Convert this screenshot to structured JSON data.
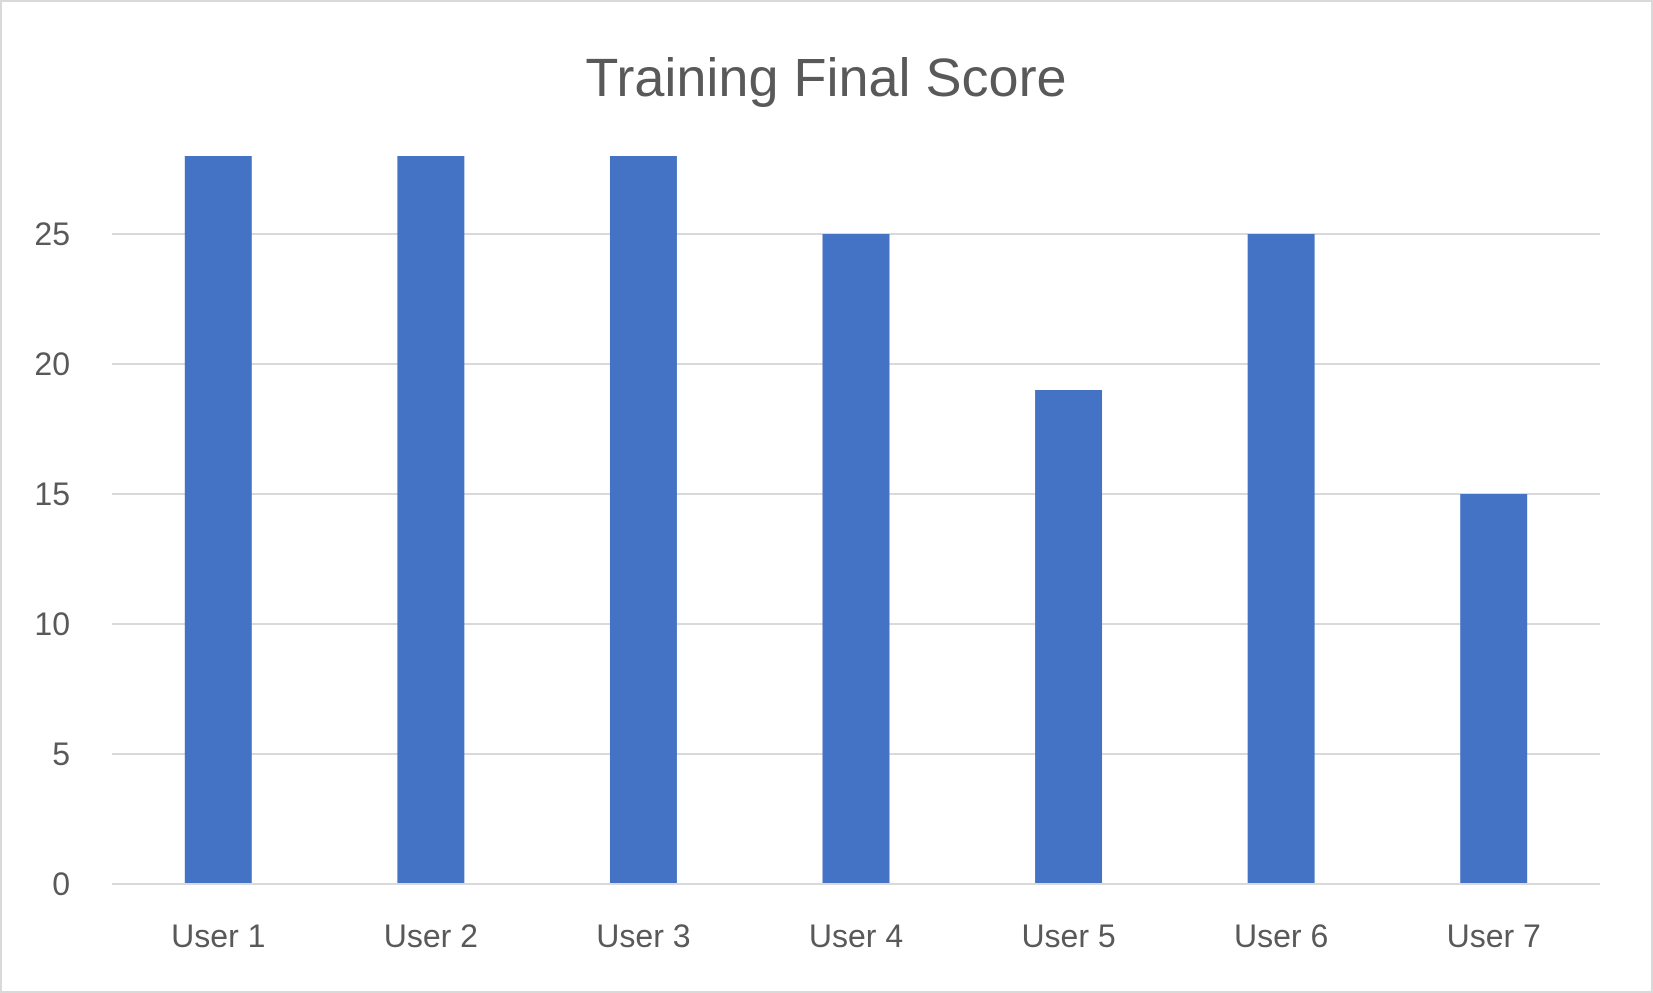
{
  "chart_data": {
    "type": "bar",
    "title": "Training Final Score",
    "xlabel": "",
    "ylabel": "",
    "categories": [
      "User 1",
      "User 2",
      "User 3",
      "User 4",
      "User 5",
      "User 6",
      "User 7"
    ],
    "values": [
      28,
      28,
      28,
      25,
      19,
      25,
      15
    ],
    "ylim": [
      0,
      28
    ],
    "yticks": [
      0,
      5,
      10,
      15,
      20,
      25
    ],
    "grid": true,
    "legend": "none",
    "colors": {
      "bar": "#4472C4",
      "text": "#595959",
      "grid": "#D9D9D9"
    }
  }
}
